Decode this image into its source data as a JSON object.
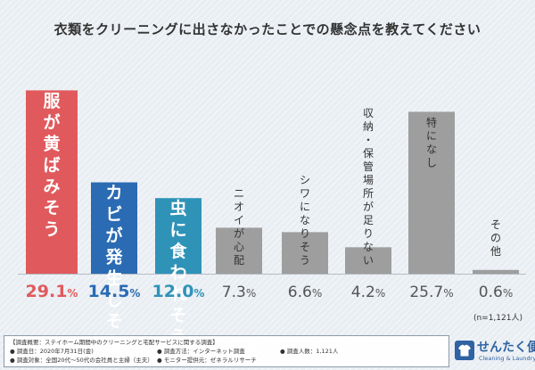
{
  "chart_data": {
    "type": "bar",
    "title": "衣類をクリーニングに出さなかったことでの懸念点を教えてください",
    "categories": [
      "服が黄ばみそう",
      "カビが発生しそう",
      "虫に食われそう",
      "ニオイが心配",
      "シワになりそう",
      "収納・保管場所が足りない",
      "特になし",
      "その他"
    ],
    "values": [
      29.1,
      14.5,
      12.0,
      7.3,
      6.6,
      4.2,
      25.7,
      0.6
    ],
    "value_labels": [
      "29.1%",
      "14.5%",
      "12.0%",
      "7.3%",
      "6.6%",
      "4.2%",
      "25.7%",
      "0.6%"
    ],
    "ylim": [
      0,
      30
    ],
    "grid": false,
    "bar_colors": [
      "#e05a5d",
      "#2b6bb3",
      "#2f93b8",
      "#9e9e9e",
      "#9e9e9e",
      "#9e9e9e",
      "#9e9e9e",
      "#9e9e9e"
    ],
    "label_colors": [
      "#e05a5d",
      "#2b6bb3",
      "#2f93b8",
      "#555555",
      "#555555",
      "#555555",
      "#555555",
      "#555555"
    ],
    "sample_size": "(n=1,121人)"
  },
  "survey": {
    "row1": "【調査概要：ステイホーム期間中のクリーニングと宅配サービスに関する調査】",
    "date": "● 調査日：2020年7月31日(金)",
    "method": "● 調査方法：インターネット調査",
    "count": "● 調査人数：1,121人",
    "target": "● 調査対象：全国20代〜50代の会社員と主婦（主夫）",
    "provider": "● モニター提供元：ゼネラルリサーチ"
  },
  "brand": {
    "name": "せんたく便",
    "sub": "Cleaning & Laundry",
    "color": "#2f63a3"
  }
}
